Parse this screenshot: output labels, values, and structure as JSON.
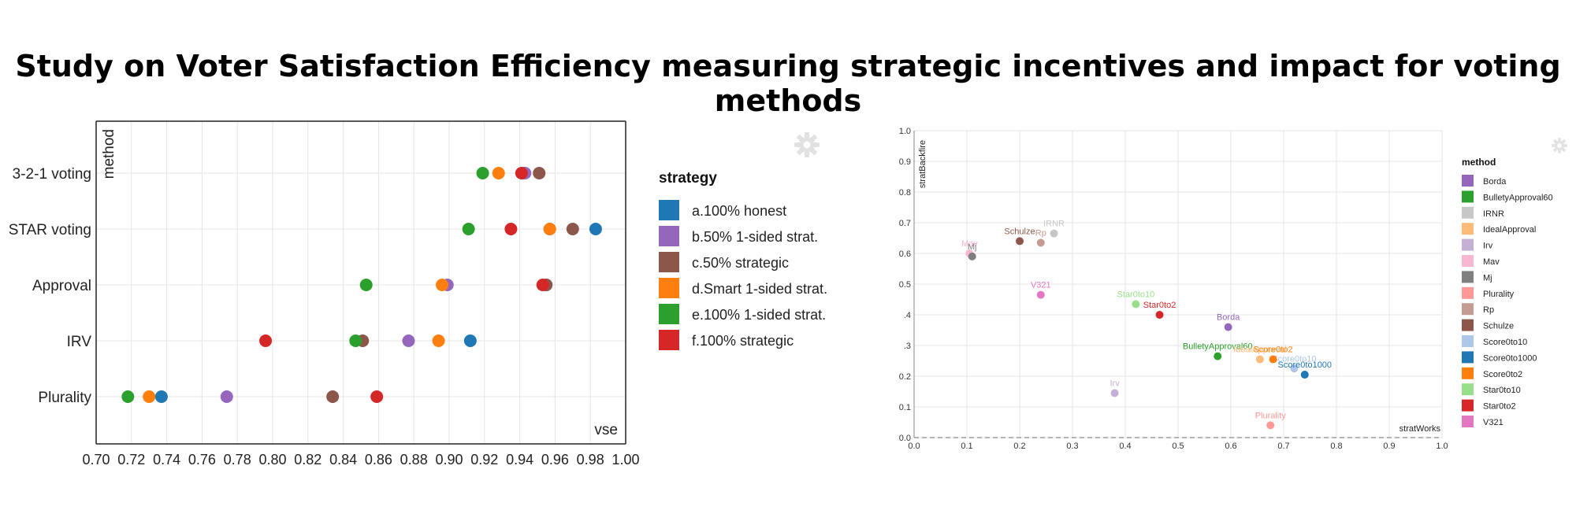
{
  "title": "Study on Voter Satisfaction Efficiency measuring strategic incentives and impact for voting methods",
  "icons": {
    "settings": "gear-icon"
  },
  "chart_data": [
    {
      "type": "scatter",
      "xlabel": "vse",
      "ylabel": "method",
      "xlim": [
        0.7,
        1.0
      ],
      "x_ticks": [
        "0.70",
        "0.72",
        "0.74",
        "0.76",
        "0.78",
        "0.80",
        "0.82",
        "0.84",
        "0.86",
        "0.88",
        "0.90",
        "0.92",
        "0.94",
        "0.96",
        "0.98",
        "1.00"
      ],
      "categories": [
        "3-2-1 voting",
        "STAR voting",
        "Approval",
        "IRV",
        "Plurality"
      ],
      "legend_title": "strategy",
      "legend_position": "right",
      "grid": true,
      "series": [
        {
          "name": "a.100% honest",
          "color": "#1f77b4",
          "values": [
            0.942,
            0.983,
            0.955,
            0.912,
            0.737
          ]
        },
        {
          "name": "b.50% 1-sided strat.",
          "color": "#9467bd",
          "values": [
            0.943,
            0.957,
            0.899,
            0.877,
            0.774
          ]
        },
        {
          "name": "c.50% strategic",
          "color": "#8c564b",
          "values": [
            0.951,
            0.97,
            0.955,
            0.851,
            0.834
          ]
        },
        {
          "name": "d.Smart 1-sided strat.",
          "color": "#ff7f0e",
          "values": [
            0.928,
            0.957,
            0.896,
            0.894,
            0.73
          ]
        },
        {
          "name": "e.100% 1-sided strat.",
          "color": "#2ca02c",
          "values": [
            0.919,
            0.911,
            0.853,
            0.847,
            0.718
          ]
        },
        {
          "name": "f.100% strategic",
          "color": "#d62728",
          "values": [
            0.941,
            0.935,
            0.953,
            0.796,
            0.859
          ]
        }
      ]
    },
    {
      "type": "scatter",
      "xlabel": "stratWorks",
      "ylabel": "stratBackfire",
      "xlim": [
        0.0,
        1.0
      ],
      "ylim": [
        0.0,
        1.0
      ],
      "x_ticks": [
        "0.0",
        "0.1",
        "0.2",
        "0.3",
        "0.4",
        "0.5",
        "0.6",
        "0.7",
        "0.8",
        "0.9",
        "1.0"
      ],
      "y_ticks": [
        "0.0",
        "0.1",
        "0.2",
        ".3",
        ".4",
        "0.5",
        "0.6",
        "0.7",
        "0.8",
        "0.9",
        "1.0"
      ],
      "legend_title": "method",
      "legend_position": "right",
      "grid": true,
      "reference_line": "y = 0 dashed",
      "points": [
        {
          "label": "Borda",
          "x": 0.595,
          "y": 0.36,
          "color": "#9467bd"
        },
        {
          "label": "BulletyApproval60",
          "x": 0.575,
          "y": 0.265,
          "color": "#2ca02c"
        },
        {
          "label": "IRNR",
          "x": 0.265,
          "y": 0.665,
          "color": "#c7c7c7"
        },
        {
          "label": "IdealApproval",
          "x": 0.655,
          "y": 0.255,
          "color": "#ffbb78"
        },
        {
          "label": "Irv",
          "x": 0.38,
          "y": 0.145,
          "color": "#c5b0d5"
        },
        {
          "label": "Mav",
          "x": 0.105,
          "y": 0.6,
          "color": "#f7b6d2"
        },
        {
          "label": "Mj",
          "x": 0.11,
          "y": 0.59,
          "color": "#7f7f7f"
        },
        {
          "label": "Plurality",
          "x": 0.675,
          "y": 0.04,
          "color": "#ff9896"
        },
        {
          "label": "Rp",
          "x": 0.24,
          "y": 0.635,
          "color": "#c49c94"
        },
        {
          "label": "Schulze",
          "x": 0.2,
          "y": 0.64,
          "color": "#8c564b"
        },
        {
          "label": "Score0to10",
          "x": 0.72,
          "y": 0.225,
          "color": "#aec7e8"
        },
        {
          "label": "Score0to1000",
          "x": 0.74,
          "y": 0.205,
          "color": "#1f77b4"
        },
        {
          "label": "Score0to2",
          "x": 0.68,
          "y": 0.255,
          "color": "#ff7f0e"
        },
        {
          "label": "Star0to10",
          "x": 0.42,
          "y": 0.435,
          "color": "#98df8a"
        },
        {
          "label": "Star0to2",
          "x": 0.465,
          "y": 0.4,
          "color": "#d62728"
        },
        {
          "label": "V321",
          "x": 0.24,
          "y": 0.465,
          "color": "#e377c2"
        }
      ]
    }
  ]
}
